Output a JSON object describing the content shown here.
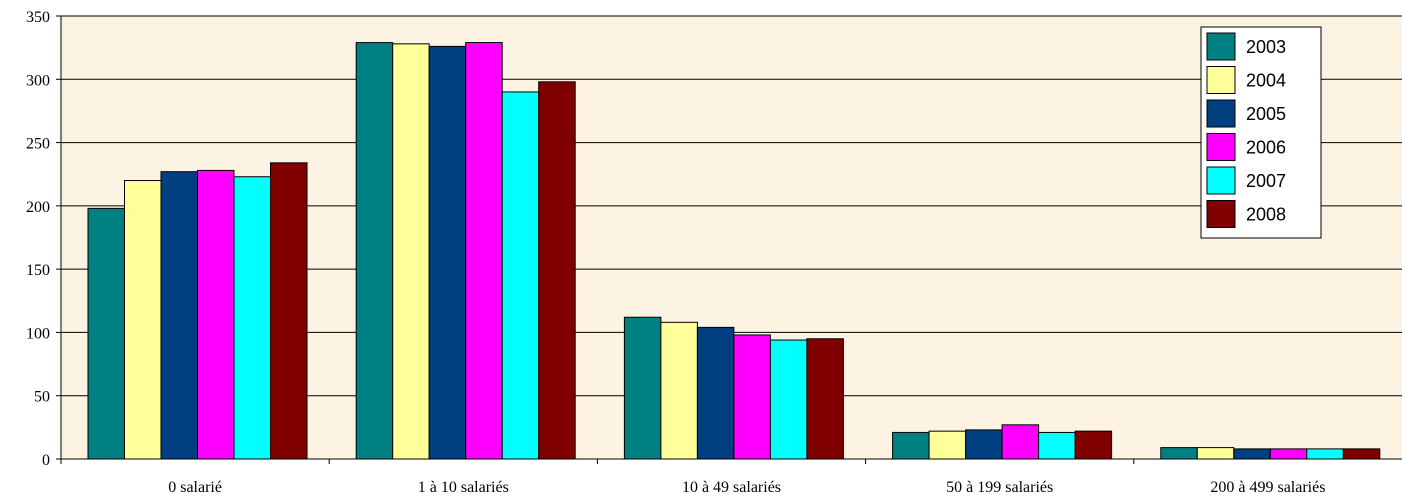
{
  "chart_data": {
    "type": "bar",
    "categories": [
      "0 salarié",
      "1 à 10 salariés",
      "10 à 49 salariés",
      "50 à 199 salariés",
      "200 à 499 salariés"
    ],
    "series": [
      {
        "name": "2003",
        "color": "#008080",
        "values": [
          198,
          329,
          112,
          21,
          9
        ]
      },
      {
        "name": "2004",
        "color": "#FFFF99",
        "values": [
          220,
          328,
          108,
          22,
          9
        ]
      },
      {
        "name": "2005",
        "color": "#003F80",
        "values": [
          227,
          326,
          104,
          23,
          8
        ]
      },
      {
        "name": "2006",
        "color": "#FF00FF",
        "values": [
          228,
          329,
          98,
          27,
          8
        ]
      },
      {
        "name": "2007",
        "color": "#00FFFF",
        "values": [
          223,
          290,
          94,
          21,
          8
        ]
      },
      {
        "name": "2008",
        "color": "#800000",
        "values": [
          234,
          298,
          95,
          22,
          8
        ]
      }
    ],
    "ylim": [
      0,
      350
    ],
    "yticks": [
      "0",
      "50",
      "100",
      "150",
      "200",
      "250",
      "300",
      "350"
    ],
    "grid": true,
    "legend_position": "top-right",
    "plot_background": "#FDF3E2"
  }
}
